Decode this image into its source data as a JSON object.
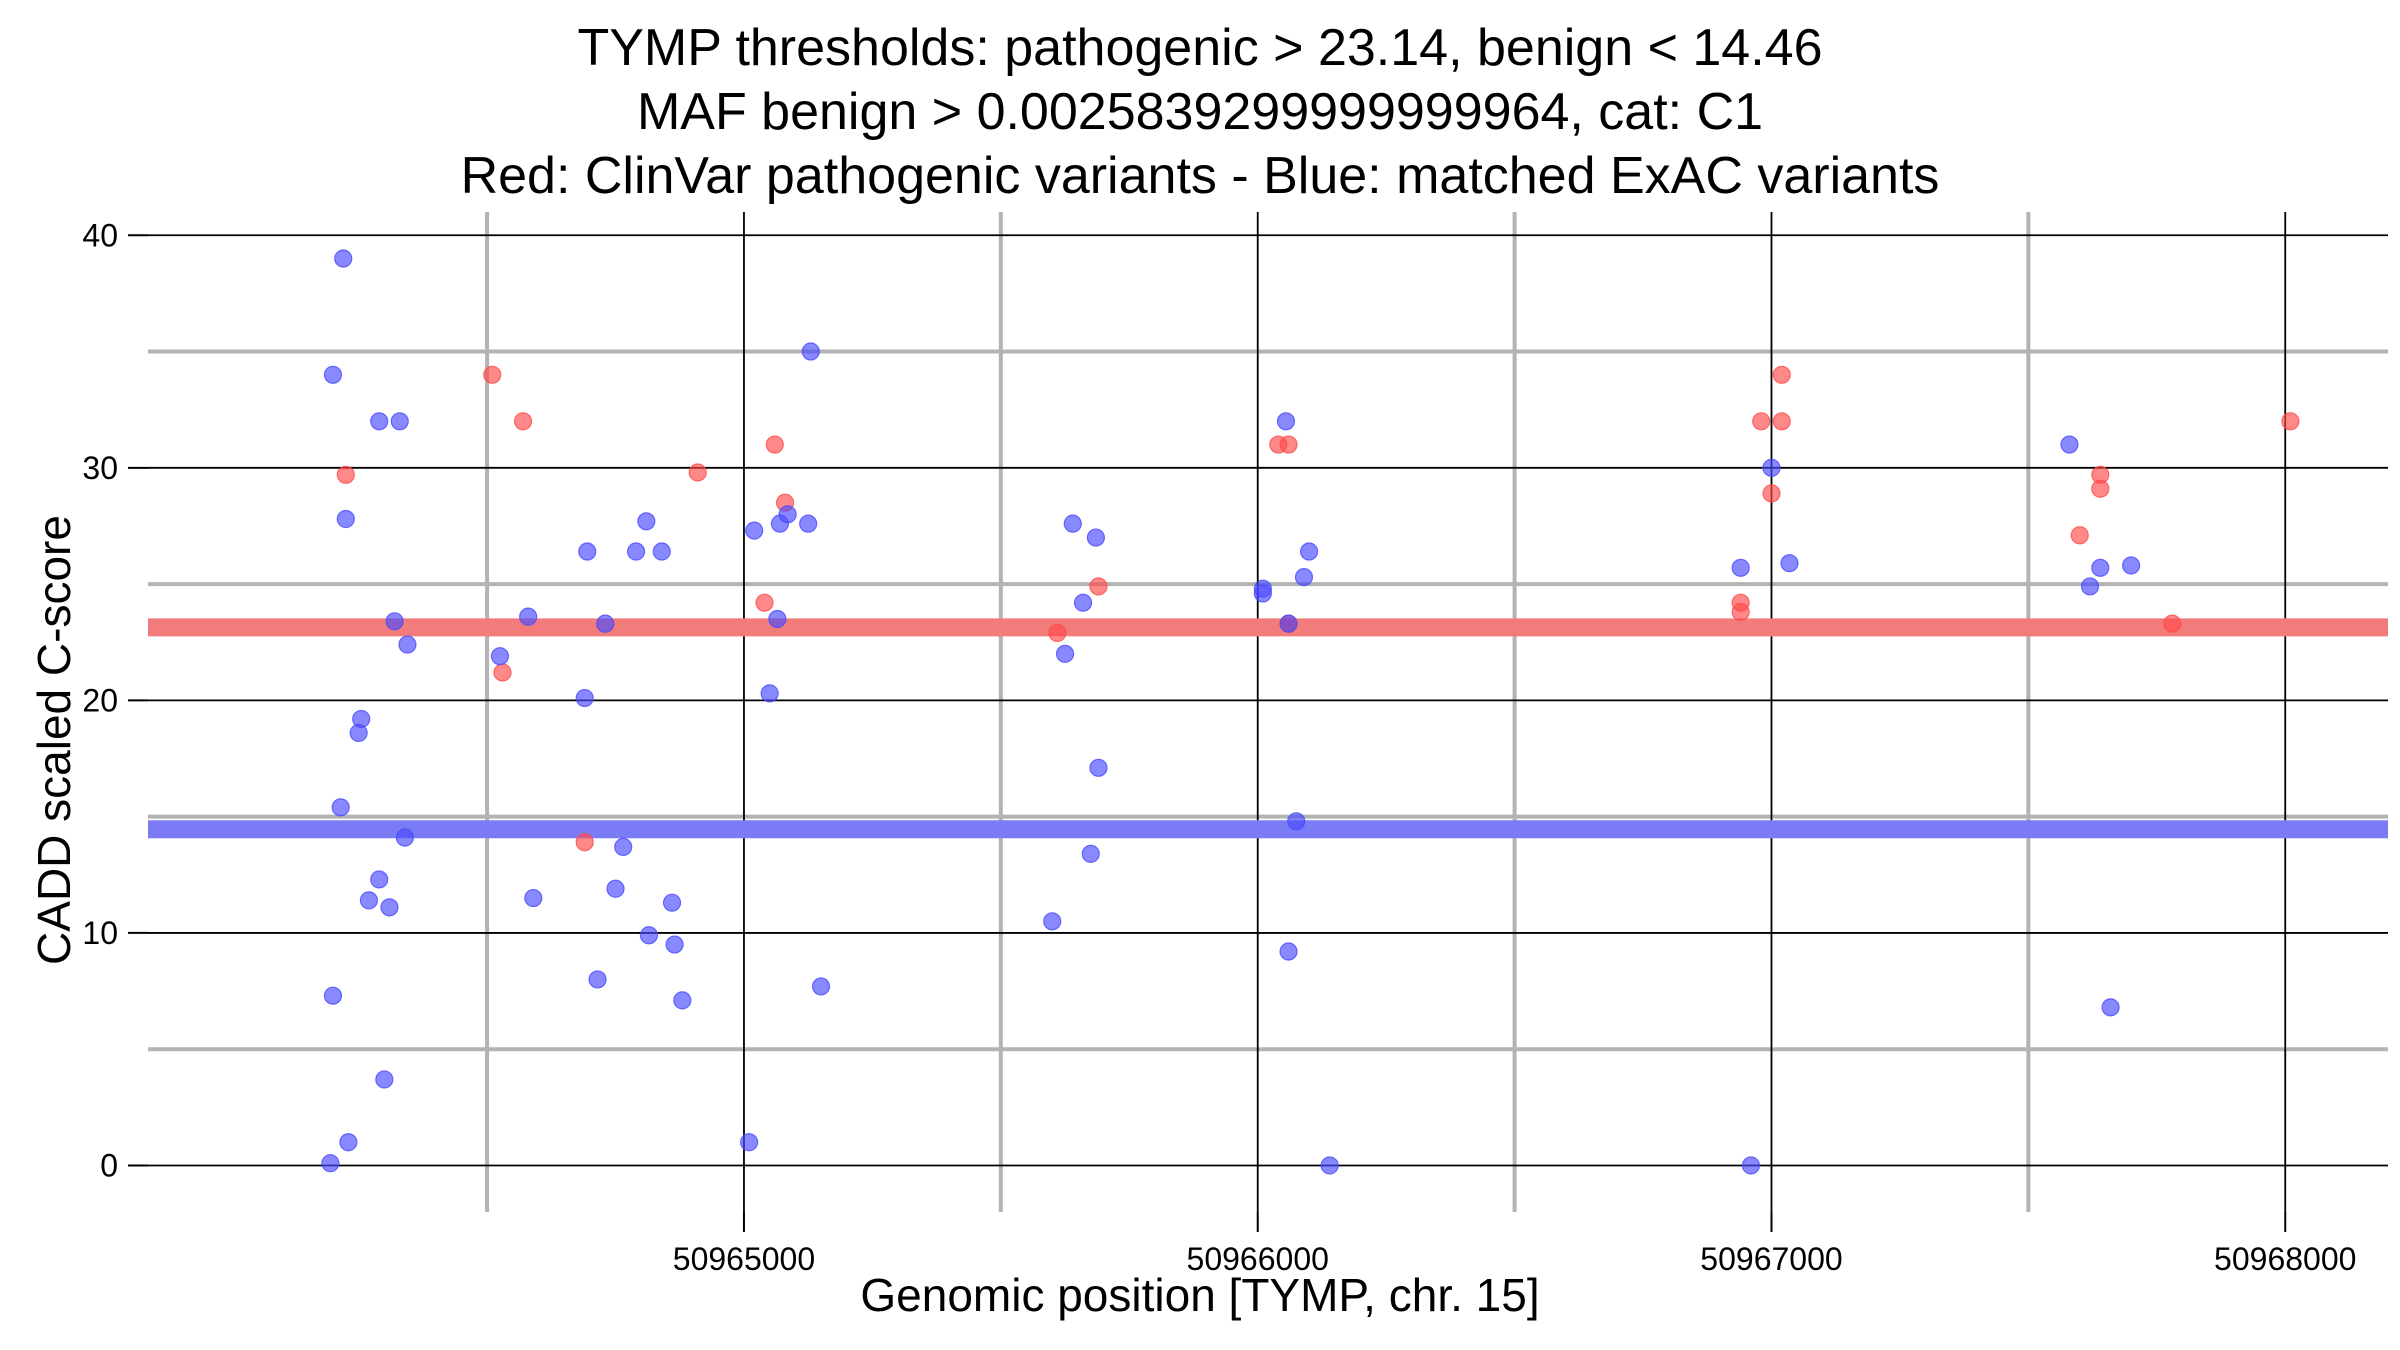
{
  "chart_data": {
    "type": "scatter",
    "title_lines": [
      "TYMP thresholds: pathogenic > 23.14, benign < 14.46",
      "MAF benign > 0.0025839299999999964, cat: C1",
      "Red: ClinVar pathogenic variants - Blue: matched ExAC variants"
    ],
    "xlabel": "Genomic position [TYMP, chr. 15]",
    "ylabel": "CADD scaled C-score",
    "xlim": [
      50963840,
      50968200
    ],
    "ylim": [
      -2,
      41
    ],
    "x_ticks": [
      50965000,
      50966000,
      50967000,
      50968000
    ],
    "y_ticks": [
      0,
      10,
      20,
      30,
      40
    ],
    "x_minor_grid": [
      50964500,
      50965500,
      50966500,
      50967500
    ],
    "y_minor_grid": [
      5,
      15,
      25,
      35
    ],
    "thresholds": [
      {
        "name": "pathogenic",
        "value": 23.14,
        "color": "#f27b7b"
      },
      {
        "name": "benign",
        "value": 14.46,
        "color": "#7b7bf5"
      }
    ],
    "series": [
      {
        "name": "ClinVar pathogenic variants",
        "color": "#ff4a4a",
        "points": [
          [
            50964225,
            29.7
          ],
          [
            50964510,
            34.0
          ],
          [
            50964530,
            21.2
          ],
          [
            50964570,
            32.0
          ],
          [
            50964690,
            13.9
          ],
          [
            50964910,
            29.8
          ],
          [
            50965040,
            24.2
          ],
          [
            50965060,
            31.0
          ],
          [
            50965080,
            28.5
          ],
          [
            50965690,
            24.9
          ],
          [
            50965610,
            22.9
          ],
          [
            50966040,
            31.0
          ],
          [
            50966060,
            31.0
          ],
          [
            50966060,
            23.3
          ],
          [
            50966940,
            24.2
          ],
          [
            50966940,
            23.8
          ],
          [
            50966980,
            32.0
          ],
          [
            50967000,
            28.9
          ],
          [
            50967020,
            32.0
          ],
          [
            50967020,
            34.0
          ],
          [
            50967600,
            27.1
          ],
          [
            50967640,
            29.7
          ],
          [
            50967640,
            29.1
          ],
          [
            50967780,
            23.3
          ],
          [
            50968010,
            32.0
          ]
        ]
      },
      {
        "name": "matched ExAC variants",
        "color": "#4a4aff",
        "points": [
          [
            50964195,
            0.1
          ],
          [
            50964200,
            34.0
          ],
          [
            50964200,
            7.3
          ],
          [
            50964215,
            15.4
          ],
          [
            50964220,
            39.0
          ],
          [
            50964225,
            27.8
          ],
          [
            50964230,
            1.0
          ],
          [
            50964250,
            18.6
          ],
          [
            50964255,
            19.2
          ],
          [
            50964270,
            11.4
          ],
          [
            50964290,
            12.3
          ],
          [
            50964290,
            32.0
          ],
          [
            50964300,
            3.7
          ],
          [
            50964310,
            11.1
          ],
          [
            50964320,
            23.4
          ],
          [
            50964330,
            32.0
          ],
          [
            50964340,
            14.1
          ],
          [
            50964345,
            22.4
          ],
          [
            50964525,
            21.9
          ],
          [
            50964580,
            23.6
          ],
          [
            50964590,
            11.5
          ],
          [
            50964690,
            20.1
          ],
          [
            50964695,
            26.4
          ],
          [
            50964715,
            8.0
          ],
          [
            50964730,
            23.3
          ],
          [
            50964750,
            11.9
          ],
          [
            50964765,
            13.7
          ],
          [
            50964790,
            26.4
          ],
          [
            50964810,
            27.7
          ],
          [
            50964815,
            9.9
          ],
          [
            50964840,
            26.4
          ],
          [
            50964860,
            11.3
          ],
          [
            50964865,
            9.5
          ],
          [
            50964880,
            7.1
          ],
          [
            50965010,
            1.0
          ],
          [
            50965020,
            27.3
          ],
          [
            50965050,
            20.3
          ],
          [
            50965065,
            23.5
          ],
          [
            50965070,
            27.6
          ],
          [
            50965085,
            28.0
          ],
          [
            50965125,
            27.6
          ],
          [
            50965130,
            35.0
          ],
          [
            50965150,
            7.7
          ],
          [
            50965600,
            10.5
          ],
          [
            50965625,
            22.0
          ],
          [
            50965640,
            27.6
          ],
          [
            50965660,
            24.2
          ],
          [
            50965675,
            13.4
          ],
          [
            50965685,
            27.0
          ],
          [
            50965690,
            17.1
          ],
          [
            50966010,
            24.8
          ],
          [
            50966010,
            24.6
          ],
          [
            50966055,
            32.0
          ],
          [
            50966060,
            9.2
          ],
          [
            50966060,
            23.3
          ],
          [
            50966075,
            14.8
          ],
          [
            50966090,
            25.3
          ],
          [
            50966100,
            26.4
          ],
          [
            50966140,
            0.0
          ],
          [
            50966940,
            25.7
          ],
          [
            50966960,
            0.0
          ],
          [
            50967000,
            30.0
          ],
          [
            50967035,
            25.9
          ],
          [
            50967580,
            31.0
          ],
          [
            50967620,
            24.9
          ],
          [
            50967640,
            25.7
          ],
          [
            50967660,
            6.8
          ],
          [
            50967700,
            25.8
          ]
        ]
      }
    ]
  }
}
